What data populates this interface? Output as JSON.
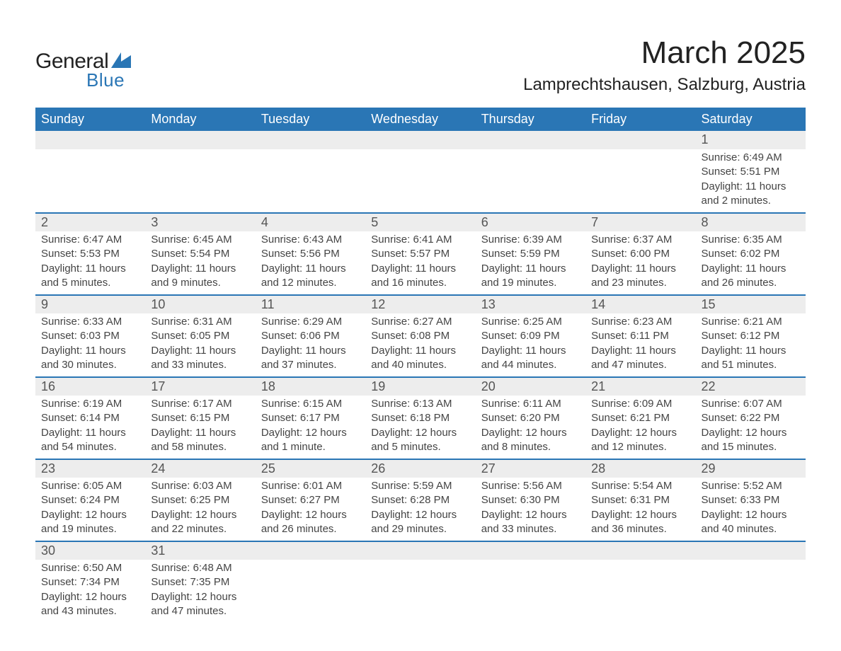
{
  "brand": {
    "word1": "General",
    "word2": "Blue",
    "text_color": "#222222",
    "accent_color": "#2a76b5"
  },
  "title": "March 2025",
  "location": "Lamprechtshausen, Salzburg, Austria",
  "colors": {
    "header_bg": "#2a76b5",
    "header_text": "#ffffff",
    "daynum_bg": "#ededed",
    "daynum_text": "#555555",
    "body_text": "#444444",
    "rule": "#2a76b5",
    "page_bg": "#ffffff"
  },
  "fonts": {
    "title_size_pt": 33,
    "location_size_pt": 18,
    "dayhead_size_pt": 14,
    "daynum_size_pt": 14,
    "cell_size_pt": 11
  },
  "day_names": [
    "Sunday",
    "Monday",
    "Tuesday",
    "Wednesday",
    "Thursday",
    "Friday",
    "Saturday"
  ],
  "weeks": [
    [
      null,
      null,
      null,
      null,
      null,
      null,
      {
        "n": "1",
        "sunrise": "6:49 AM",
        "sunset": "5:51 PM",
        "dl1": "Daylight: 11 hours",
        "dl2": "and 2 minutes."
      }
    ],
    [
      {
        "n": "2",
        "sunrise": "6:47 AM",
        "sunset": "5:53 PM",
        "dl1": "Daylight: 11 hours",
        "dl2": "and 5 minutes."
      },
      {
        "n": "3",
        "sunrise": "6:45 AM",
        "sunset": "5:54 PM",
        "dl1": "Daylight: 11 hours",
        "dl2": "and 9 minutes."
      },
      {
        "n": "4",
        "sunrise": "6:43 AM",
        "sunset": "5:56 PM",
        "dl1": "Daylight: 11 hours",
        "dl2": "and 12 minutes."
      },
      {
        "n": "5",
        "sunrise": "6:41 AM",
        "sunset": "5:57 PM",
        "dl1": "Daylight: 11 hours",
        "dl2": "and 16 minutes."
      },
      {
        "n": "6",
        "sunrise": "6:39 AM",
        "sunset": "5:59 PM",
        "dl1": "Daylight: 11 hours",
        "dl2": "and 19 minutes."
      },
      {
        "n": "7",
        "sunrise": "6:37 AM",
        "sunset": "6:00 PM",
        "dl1": "Daylight: 11 hours",
        "dl2": "and 23 minutes."
      },
      {
        "n": "8",
        "sunrise": "6:35 AM",
        "sunset": "6:02 PM",
        "dl1": "Daylight: 11 hours",
        "dl2": "and 26 minutes."
      }
    ],
    [
      {
        "n": "9",
        "sunrise": "6:33 AM",
        "sunset": "6:03 PM",
        "dl1": "Daylight: 11 hours",
        "dl2": "and 30 minutes."
      },
      {
        "n": "10",
        "sunrise": "6:31 AM",
        "sunset": "6:05 PM",
        "dl1": "Daylight: 11 hours",
        "dl2": "and 33 minutes."
      },
      {
        "n": "11",
        "sunrise": "6:29 AM",
        "sunset": "6:06 PM",
        "dl1": "Daylight: 11 hours",
        "dl2": "and 37 minutes."
      },
      {
        "n": "12",
        "sunrise": "6:27 AM",
        "sunset": "6:08 PM",
        "dl1": "Daylight: 11 hours",
        "dl2": "and 40 minutes."
      },
      {
        "n": "13",
        "sunrise": "6:25 AM",
        "sunset": "6:09 PM",
        "dl1": "Daylight: 11 hours",
        "dl2": "and 44 minutes."
      },
      {
        "n": "14",
        "sunrise": "6:23 AM",
        "sunset": "6:11 PM",
        "dl1": "Daylight: 11 hours",
        "dl2": "and 47 minutes."
      },
      {
        "n": "15",
        "sunrise": "6:21 AM",
        "sunset": "6:12 PM",
        "dl1": "Daylight: 11 hours",
        "dl2": "and 51 minutes."
      }
    ],
    [
      {
        "n": "16",
        "sunrise": "6:19 AM",
        "sunset": "6:14 PM",
        "dl1": "Daylight: 11 hours",
        "dl2": "and 54 minutes."
      },
      {
        "n": "17",
        "sunrise": "6:17 AM",
        "sunset": "6:15 PM",
        "dl1": "Daylight: 11 hours",
        "dl2": "and 58 minutes."
      },
      {
        "n": "18",
        "sunrise": "6:15 AM",
        "sunset": "6:17 PM",
        "dl1": "Daylight: 12 hours",
        "dl2": "and 1 minute."
      },
      {
        "n": "19",
        "sunrise": "6:13 AM",
        "sunset": "6:18 PM",
        "dl1": "Daylight: 12 hours",
        "dl2": "and 5 minutes."
      },
      {
        "n": "20",
        "sunrise": "6:11 AM",
        "sunset": "6:20 PM",
        "dl1": "Daylight: 12 hours",
        "dl2": "and 8 minutes."
      },
      {
        "n": "21",
        "sunrise": "6:09 AM",
        "sunset": "6:21 PM",
        "dl1": "Daylight: 12 hours",
        "dl2": "and 12 minutes."
      },
      {
        "n": "22",
        "sunrise": "6:07 AM",
        "sunset": "6:22 PM",
        "dl1": "Daylight: 12 hours",
        "dl2": "and 15 minutes."
      }
    ],
    [
      {
        "n": "23",
        "sunrise": "6:05 AM",
        "sunset": "6:24 PM",
        "dl1": "Daylight: 12 hours",
        "dl2": "and 19 minutes."
      },
      {
        "n": "24",
        "sunrise": "6:03 AM",
        "sunset": "6:25 PM",
        "dl1": "Daylight: 12 hours",
        "dl2": "and 22 minutes."
      },
      {
        "n": "25",
        "sunrise": "6:01 AM",
        "sunset": "6:27 PM",
        "dl1": "Daylight: 12 hours",
        "dl2": "and 26 minutes."
      },
      {
        "n": "26",
        "sunrise": "5:59 AM",
        "sunset": "6:28 PM",
        "dl1": "Daylight: 12 hours",
        "dl2": "and 29 minutes."
      },
      {
        "n": "27",
        "sunrise": "5:56 AM",
        "sunset": "6:30 PM",
        "dl1": "Daylight: 12 hours",
        "dl2": "and 33 minutes."
      },
      {
        "n": "28",
        "sunrise": "5:54 AM",
        "sunset": "6:31 PM",
        "dl1": "Daylight: 12 hours",
        "dl2": "and 36 minutes."
      },
      {
        "n": "29",
        "sunrise": "5:52 AM",
        "sunset": "6:33 PM",
        "dl1": "Daylight: 12 hours",
        "dl2": "and 40 minutes."
      }
    ],
    [
      {
        "n": "30",
        "sunrise": "6:50 AM",
        "sunset": "7:34 PM",
        "dl1": "Daylight: 12 hours",
        "dl2": "and 43 minutes."
      },
      {
        "n": "31",
        "sunrise": "6:48 AM",
        "sunset": "7:35 PM",
        "dl1": "Daylight: 12 hours",
        "dl2": "and 47 minutes."
      },
      null,
      null,
      null,
      null,
      null
    ]
  ],
  "labels": {
    "sunrise_prefix": "Sunrise: ",
    "sunset_prefix": "Sunset: "
  }
}
